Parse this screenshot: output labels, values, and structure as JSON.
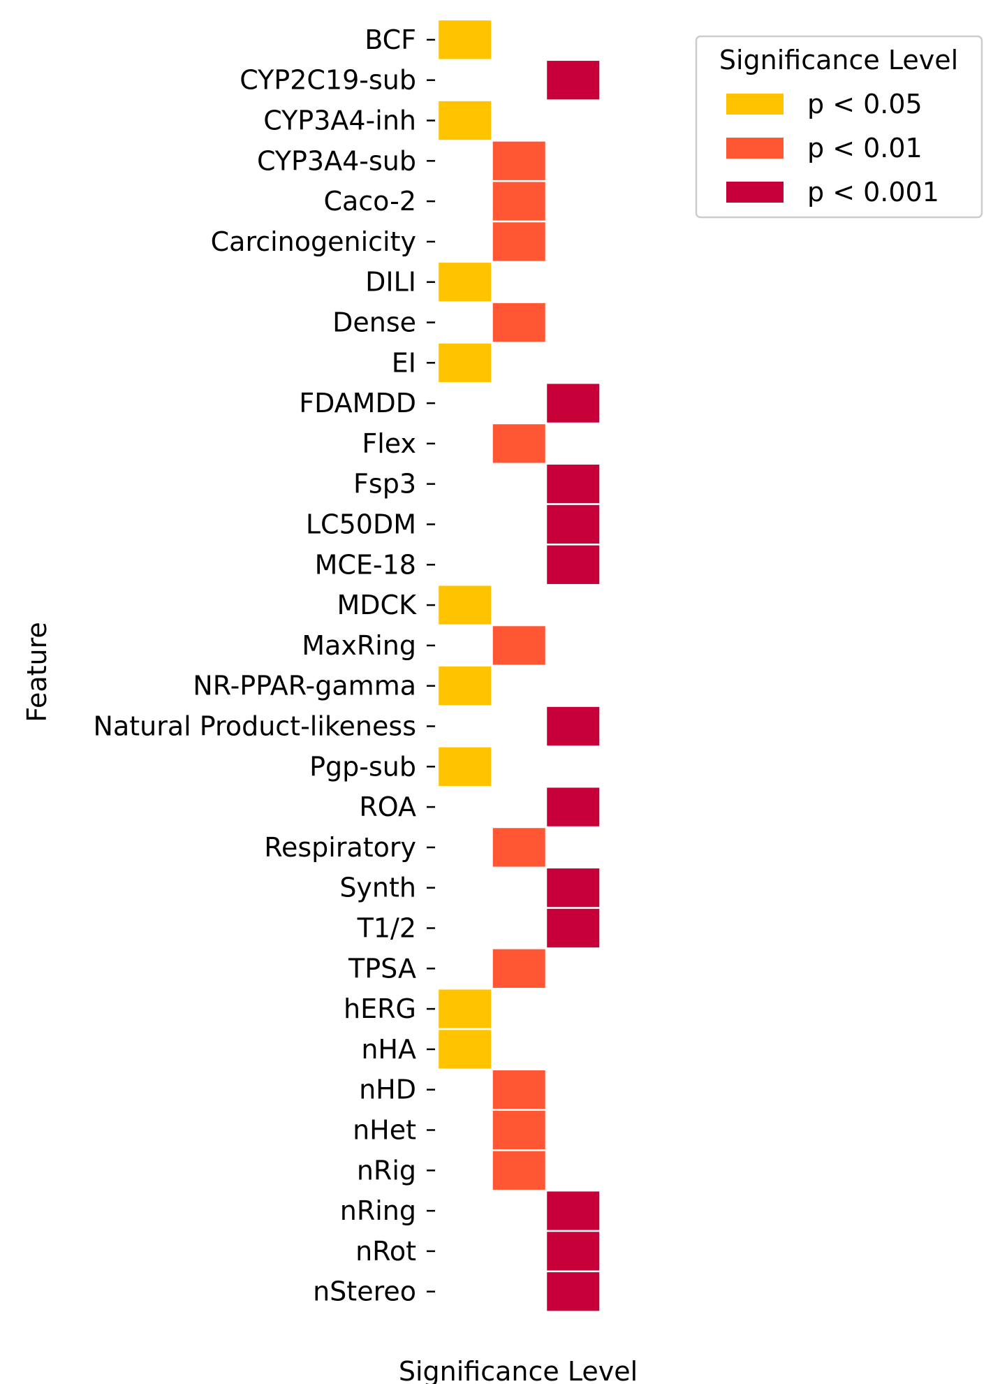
{
  "chart_data": {
    "type": "heatmap",
    "xlabel": "Significance Level",
    "ylabel": "Feature",
    "columns": [
      "p < 0.05",
      "p < 0.01",
      "p < 0.001"
    ],
    "features": [
      {
        "name": "BCF",
        "level": "p < 0.05"
      },
      {
        "name": "CYP2C19-sub",
        "level": "p < 0.001"
      },
      {
        "name": "CYP3A4-inh",
        "level": "p < 0.05"
      },
      {
        "name": "CYP3A4-sub",
        "level": "p < 0.01"
      },
      {
        "name": "Caco-2",
        "level": "p < 0.01"
      },
      {
        "name": "Carcinogenicity",
        "level": "p < 0.01"
      },
      {
        "name": "DILI",
        "level": "p < 0.05"
      },
      {
        "name": "Dense",
        "level": "p < 0.01"
      },
      {
        "name": "EI",
        "level": "p < 0.05"
      },
      {
        "name": "FDAMDD",
        "level": "p < 0.001"
      },
      {
        "name": "Flex",
        "level": "p < 0.01"
      },
      {
        "name": "Fsp3",
        "level": "p < 0.001"
      },
      {
        "name": "LC50DM",
        "level": "p < 0.001"
      },
      {
        "name": "MCE-18",
        "level": "p < 0.001"
      },
      {
        "name": "MDCK",
        "level": "p < 0.05"
      },
      {
        "name": "MaxRing",
        "level": "p < 0.01"
      },
      {
        "name": "NR-PPAR-gamma",
        "level": "p < 0.05"
      },
      {
        "name": "Natural Product-likeness",
        "level": "p < 0.001"
      },
      {
        "name": "Pgp-sub",
        "level": "p < 0.05"
      },
      {
        "name": "ROA",
        "level": "p < 0.001"
      },
      {
        "name": "Respiratory",
        "level": "p < 0.01"
      },
      {
        "name": "Synth",
        "level": "p < 0.001"
      },
      {
        "name": "T1/2",
        "level": "p < 0.001"
      },
      {
        "name": "TPSA",
        "level": "p < 0.01"
      },
      {
        "name": "hERG",
        "level": "p < 0.05"
      },
      {
        "name": "nHA",
        "level": "p < 0.05"
      },
      {
        "name": "nHD",
        "level": "p < 0.01"
      },
      {
        "name": "nHet",
        "level": "p < 0.01"
      },
      {
        "name": "nRig",
        "level": "p < 0.01"
      },
      {
        "name": "nRing",
        "level": "p < 0.001"
      },
      {
        "name": "nRot",
        "level": "p < 0.001"
      },
      {
        "name": "nStereo",
        "level": "p < 0.001"
      }
    ],
    "legend": {
      "title": "Significance Level",
      "placement": "top-right",
      "entries": [
        {
          "label": "p < 0.05",
          "color": "#FFC300"
        },
        {
          "label": "p < 0.01",
          "color": "#FF5733"
        },
        {
          "label": "p < 0.001",
          "color": "#C70039"
        }
      ]
    }
  }
}
